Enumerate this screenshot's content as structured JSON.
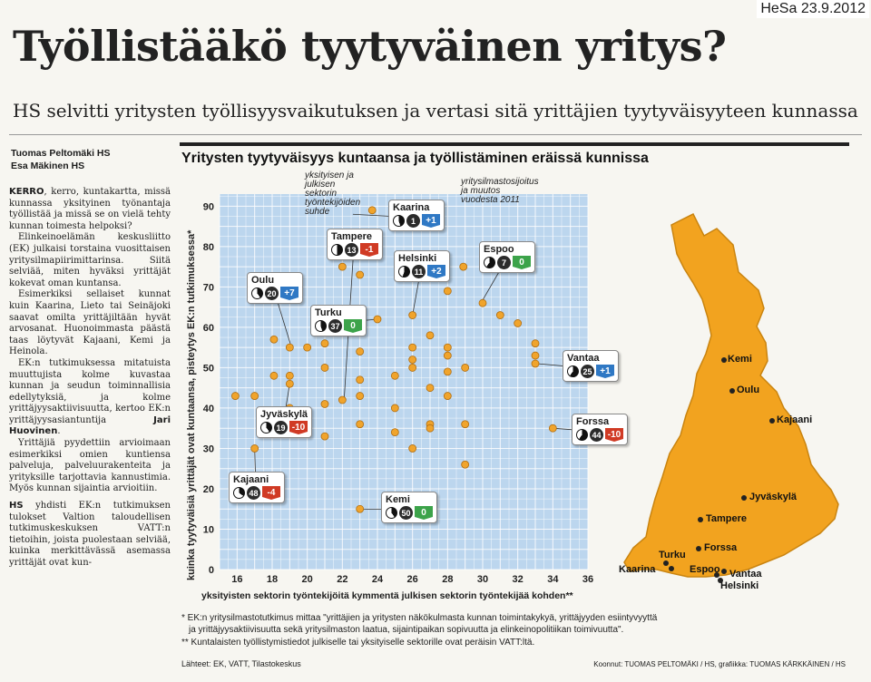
{
  "stamp": "HeSa 23.9.2012",
  "headline": "Työllistääkö tyytyväinen yritys?",
  "subhead": "HS selvitti yritysten työllisyysvaikutuksen ja vertasi sitä yrittäjien tyytyväisyyteen kunnassa",
  "byline": [
    "Tuomas Peltomäki HS",
    "Esa Mäkinen HS"
  ],
  "article": {
    "lead_caps": "KERRO",
    "p1": ", kerro, kuntakartta, missä kunnassa yksityinen työnantaja työllistää ja missä se on vielä tehty kunnan toimesta helpoksi?",
    "p2": "Elinkeinoelämän keskusliitto (EK) julkaisi torstaina vuosittaisen yritysilmapiirimittarinsa. Siitä selviää, miten hyväksi yrittäjät kokevat oman kuntansa.",
    "p3": "Esimerkiksi sellaiset kunnat kuin Kaarina, Lieto tai Seinäjoki saavat omilta yrittäjiltään hyvät arvosanat. Huonoimmasta päästä taas löytyvät Kajaani, Kemi ja Heinola.",
    "p4_pre": "EK:n tutkimuksessa mitatuista muuttujista kolme kuvastaa kunnan ja seudun toiminnallisia edellytyksiä, ja kolme yrittäjyysaktiivisuutta, kertoo EK:n yrittäjyysasiantuntija ",
    "p4_name": "Jari Huovinen",
    "p4_post": ".",
    "p5": "Yrittäjiä pyydettiin arvioimaan esimerkiksi omien kuntiensa palveluja, palveluurakenteita ja yrityksille tarjottavia kannustimia. Myös kunnan sijaintia arvioitiin.",
    "p6_caps": "HS",
    "p6": " yhdisti EK:n tutkimuksen tulokset Valtion taloudellisen tutkimuskeskuksen VATT:n tietoihin, joista puolestaan selviää, kuinka merkittävässä asemassa yrittäjät ovat kun-"
  },
  "chart_title": "Yritysten tyytyväisyys kuntaansa ja työllistäminen eräissä kunnissa",
  "note_ratio": "yksityisen ja julkisen sektorin työntekijöiden suhde",
  "note_rank": "yritysilmastosijoitus ja muutos vuodesta 2011",
  "chart_data": {
    "type": "scatter",
    "title": "Yritysten tyytyväisyys kuntaansa ja työllistäminen eräissä kunnissa",
    "xlabel": "yksityisten sektorin työntekijöitä kymmentä julkisen sektorin työntekijää kohden**",
    "ylabel": "kuinka tyytyväisiä yrittäjät ovat kuntaansa, pisteytys EK:n tutkimuksessa*",
    "xlim": [
      15,
      36
    ],
    "ylim": [
      0,
      93
    ],
    "xticks": [
      "16",
      "18",
      "20",
      "22",
      "24",
      "26",
      "28",
      "30",
      "32",
      "34",
      "36"
    ],
    "yticks": [
      "0",
      "10",
      "20",
      "30",
      "40",
      "50",
      "60",
      "70",
      "80",
      "90"
    ],
    "grid": true,
    "point_color": "#f0a42c",
    "points": [
      [
        15.9,
        43
      ],
      [
        17,
        43
      ],
      [
        17,
        30
      ],
      [
        18.1,
        57
      ],
      [
        18.1,
        48
      ],
      [
        19,
        55
      ],
      [
        19,
        48
      ],
      [
        19,
        46
      ],
      [
        19,
        40
      ],
      [
        20,
        55
      ],
      [
        21,
        56
      ],
      [
        21,
        50
      ],
      [
        21,
        41
      ],
      [
        21,
        33
      ],
      [
        22,
        42
      ],
      [
        22,
        75
      ],
      [
        23,
        73
      ],
      [
        23,
        54
      ],
      [
        23,
        47
      ],
      [
        23,
        43
      ],
      [
        23,
        36
      ],
      [
        23,
        15
      ],
      [
        24,
        62
      ],
      [
        24,
        78
      ],
      [
        25,
        48
      ],
      [
        25,
        40
      ],
      [
        25,
        34
      ],
      [
        26,
        63
      ],
      [
        26,
        55
      ],
      [
        26,
        52
      ],
      [
        26,
        50
      ],
      [
        26,
        30
      ],
      [
        27,
        58
      ],
      [
        27,
        45
      ],
      [
        27,
        36
      ],
      [
        27,
        35
      ],
      [
        28,
        55
      ],
      [
        28,
        53
      ],
      [
        28,
        49
      ],
      [
        28,
        43
      ],
      [
        28,
        69
      ],
      [
        28.9,
        75
      ],
      [
        29,
        50
      ],
      [
        29,
        36
      ],
      [
        29,
        26
      ],
      [
        30,
        66
      ],
      [
        31,
        63
      ],
      [
        32,
        61
      ],
      [
        33,
        56
      ],
      [
        33,
        53
      ],
      [
        33,
        51
      ],
      [
        34,
        35
      ],
      [
        23.7,
        89
      ]
    ],
    "highlighted": [
      {
        "name": "Kaarina",
        "x": 22.6,
        "y": 88,
        "rank": "1",
        "change": "+1",
        "sector_share": 0.45
      },
      {
        "name": "Tampere",
        "x": 22.1,
        "y": 42,
        "rank": "13",
        "change": "-1",
        "sector_share": 0.5
      },
      {
        "name": "Helsinki",
        "x": 26,
        "y": 63,
        "rank": "11",
        "change": "+2",
        "sector_share": 0.55
      },
      {
        "name": "Espoo",
        "x": 29.9,
        "y": 66,
        "rank": "7",
        "change": "0",
        "sector_share": 0.6
      },
      {
        "name": "Oulu",
        "x": 19.1,
        "y": 55,
        "rank": "20",
        "change": "+7",
        "sector_share": 0.4
      },
      {
        "name": "Turku",
        "x": 24,
        "y": 62,
        "rank": "37",
        "change": "0",
        "sector_share": 0.45
      },
      {
        "name": "Vantaa",
        "x": 33.1,
        "y": 51,
        "rank": "25",
        "change": "+1",
        "sector_share": 0.6
      },
      {
        "name": "Jyväskylä",
        "x": 19,
        "y": 46,
        "rank": "19",
        "change": "-10",
        "sector_share": 0.4
      },
      {
        "name": "Forssa",
        "x": 34,
        "y": 35,
        "rank": "44",
        "change": "-10",
        "sector_share": 0.6
      },
      {
        "name": "Kajaani",
        "x": 17,
        "y": 30,
        "rank": "48",
        "change": "-4",
        "sector_share": 0.35
      },
      {
        "name": "Kemi",
        "x": 23,
        "y": 15,
        "rank": "50",
        "change": "0",
        "sector_share": 0.4
      }
    ]
  },
  "map": {
    "fill": "#f2a31f",
    "cities": [
      "Kemi",
      "Oulu",
      "Kajaani",
      "Jyväskylä",
      "Tampere",
      "Forssa",
      "Turku",
      "Espoo",
      "Vantaa",
      "Kaarina",
      "Helsinki"
    ]
  },
  "footnote1": "* EK:n yritysilmastotutkimus mittaa \"yrittäjien ja yritysten näkökulmasta kunnan toimintakykyä, yrittäjyyden esiintyvyyttä",
  "footnote2": "ja yrittäjyysaktiivisuutta sekä yritysilmaston laatua, sijaintipaikan sopivuutta ja elinkeinopolitiikan toimivuutta\".",
  "footnote3": "** Kuntalaisten työllistymistiedot julkiselle tai yksityiselle sektorille ovat peräisin VATT:ltä.",
  "source": "Lähteet: EK, VATT, Tilastokeskus",
  "credits": "Koonnut: TUOMAS PELTOMÄKI / HS, grafiikka: TUOMAS KÄRKKÄINEN / HS"
}
